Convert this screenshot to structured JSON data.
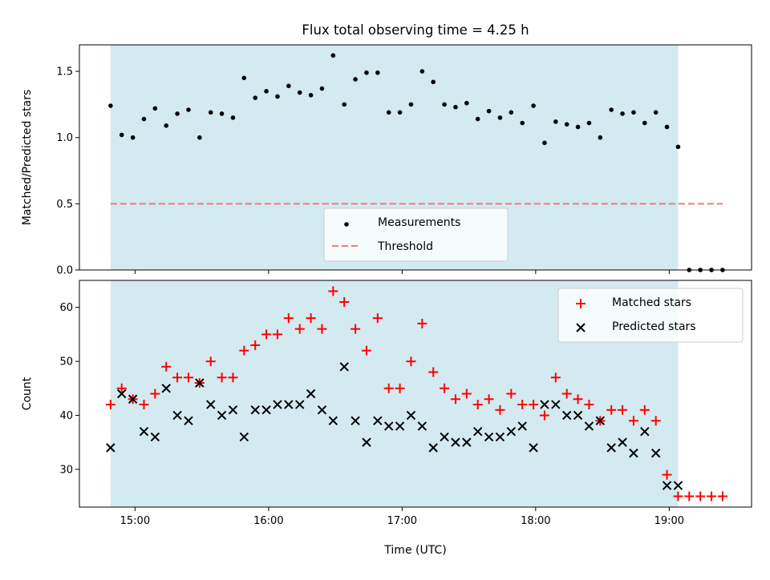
{
  "chart_data": [
    {
      "type": "scatter",
      "title": "Flux total observing time = 4.25 h",
      "xlabel": "",
      "ylabel": "Matched/Predicted stars",
      "xlim": [
        "14:35",
        "19:37"
      ],
      "ylim": [
        0,
        1.7
      ],
      "yticks": [
        "0.0",
        "0.5",
        "1.0",
        "1.5"
      ],
      "shaded_span": [
        "14:49",
        "19:04"
      ],
      "shade_color": "#d3eaf0",
      "legend": {
        "placement": "bottom-center",
        "entries": [
          "Measurements",
          "Threshold"
        ]
      },
      "series": [
        {
          "name": "Measurements",
          "marker": "dot",
          "color": "#000000",
          "x": [
            "14:49",
            "14:54",
            "14:59",
            "15:04",
            "15:09",
            "15:14",
            "15:19",
            "15:24",
            "15:29",
            "15:34",
            "15:39",
            "15:44",
            "15:49",
            "15:54",
            "15:59",
            "16:04",
            "16:09",
            "16:14",
            "16:19",
            "16:24",
            "16:29",
            "16:34",
            "16:39",
            "16:44",
            "16:49",
            "16:54",
            "16:59",
            "17:04",
            "17:09",
            "17:14",
            "17:19",
            "17:24",
            "17:29",
            "17:34",
            "17:39",
            "17:44",
            "17:49",
            "17:54",
            "17:59",
            "18:04",
            "18:09",
            "18:14",
            "18:19",
            "18:24",
            "18:29",
            "18:34",
            "18:39",
            "18:44",
            "18:49",
            "18:54",
            "18:59",
            "19:04",
            "19:09",
            "19:14",
            "19:19",
            "19:24"
          ],
          "y": [
            1.24,
            1.02,
            1.0,
            1.14,
            1.22,
            1.09,
            1.18,
            1.21,
            1.0,
            1.19,
            1.18,
            1.15,
            1.45,
            1.3,
            1.35,
            1.31,
            1.39,
            1.34,
            1.32,
            1.37,
            1.62,
            1.25,
            1.44,
            1.49,
            1.49,
            1.19,
            1.19,
            1.25,
            1.5,
            1.42,
            1.25,
            1.23,
            1.26,
            1.14,
            1.2,
            1.15,
            1.19,
            1.11,
            1.24,
            0.96,
            1.12,
            1.1,
            1.08,
            1.11,
            1.0,
            1.21,
            1.18,
            1.19,
            1.11,
            1.19,
            1.08,
            0.93,
            0.0,
            0.0,
            0.0,
            0.0
          ]
        },
        {
          "name": "Threshold",
          "style": "dashed",
          "color": "#f07a7a",
          "y": 0.5,
          "x_range": [
            "14:49",
            "19:24"
          ]
        }
      ]
    },
    {
      "type": "scatter",
      "title": "",
      "xlabel": "Time (UTC)",
      "ylabel": "Count",
      "xlim": [
        "14:35",
        "19:37"
      ],
      "ylim": [
        23,
        65
      ],
      "xticks": [
        "15:00",
        "16:00",
        "17:00",
        "18:00",
        "19:00"
      ],
      "yticks": [
        "30",
        "40",
        "50",
        "60"
      ],
      "shaded_span": [
        "14:49",
        "19:04"
      ],
      "shade_color": "#d3eaf0",
      "legend": {
        "placement": "top-right",
        "entries": [
          "Matched stars",
          "Predicted stars"
        ]
      },
      "series": [
        {
          "name": "Matched stars",
          "marker": "plus",
          "color": "#ff0000",
          "x": [
            "14:49",
            "14:54",
            "14:59",
            "15:04",
            "15:09",
            "15:14",
            "15:19",
            "15:24",
            "15:29",
            "15:34",
            "15:39",
            "15:44",
            "15:49",
            "15:54",
            "15:59",
            "16:04",
            "16:09",
            "16:14",
            "16:19",
            "16:24",
            "16:29",
            "16:34",
            "16:39",
            "16:44",
            "16:49",
            "16:54",
            "16:59",
            "17:04",
            "17:09",
            "17:14",
            "17:19",
            "17:24",
            "17:29",
            "17:34",
            "17:39",
            "17:44",
            "17:49",
            "17:54",
            "17:59",
            "18:04",
            "18:09",
            "18:14",
            "18:19",
            "18:24",
            "18:29",
            "18:34",
            "18:39",
            "18:44",
            "18:49",
            "18:54",
            "18:59",
            "19:04",
            "19:09",
            "19:14",
            "19:19",
            "19:24"
          ],
          "y": [
            42,
            45,
            43,
            42,
            44,
            49,
            47,
            47,
            46,
            50,
            47,
            47,
            52,
            53,
            55,
            55,
            58,
            56,
            58,
            56,
            63,
            61,
            56,
            52,
            58,
            45,
            45,
            50,
            57,
            48,
            45,
            43,
            44,
            42,
            43,
            41,
            44,
            42,
            42,
            40,
            47,
            44,
            43,
            42,
            39,
            41,
            41,
            39,
            41,
            39,
            29,
            25,
            25,
            25,
            25,
            25
          ]
        },
        {
          "name": "Predicted stars",
          "marker": "x",
          "color": "#000000",
          "x": [
            "14:49",
            "14:54",
            "14:59",
            "15:04",
            "15:09",
            "15:14",
            "15:19",
            "15:24",
            "15:29",
            "15:34",
            "15:39",
            "15:44",
            "15:49",
            "15:54",
            "15:59",
            "16:04",
            "16:09",
            "16:14",
            "16:19",
            "16:24",
            "16:29",
            "16:34",
            "16:39",
            "16:44",
            "16:49",
            "16:54",
            "16:59",
            "17:04",
            "17:09",
            "17:14",
            "17:19",
            "17:24",
            "17:29",
            "17:34",
            "17:39",
            "17:44",
            "17:49",
            "17:54",
            "17:59",
            "18:04",
            "18:09",
            "18:14",
            "18:19",
            "18:24",
            "18:29",
            "18:34",
            "18:39",
            "18:44",
            "18:49",
            "18:54",
            "18:59",
            "19:04"
          ],
          "y": [
            34,
            44,
            43,
            37,
            36,
            45,
            40,
            39,
            46,
            42,
            40,
            41,
            36,
            41,
            41,
            42,
            42,
            42,
            44,
            41,
            39,
            49,
            39,
            35,
            39,
            38,
            38,
            40,
            38,
            34,
            36,
            35,
            35,
            37,
            36,
            36,
            37,
            38,
            34,
            42,
            42,
            40,
            40,
            38,
            39,
            34,
            35,
            33,
            37,
            33,
            27,
            27
          ]
        }
      ]
    }
  ]
}
